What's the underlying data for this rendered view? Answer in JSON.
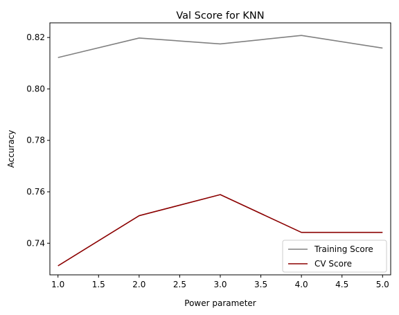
{
  "chart_data": {
    "type": "line",
    "title": "Val Score for KNN",
    "xlabel": "Power parameter",
    "ylabel": "Accuracy",
    "x": [
      1.0,
      2.0,
      3.0,
      4.0,
      5.0
    ],
    "xlim": [
      0.9,
      5.1
    ],
    "ylim": [
      0.7277,
      0.8257
    ],
    "xticks": [
      1.0,
      1.5,
      2.0,
      2.5,
      3.0,
      3.5,
      4.0,
      4.5,
      5.0
    ],
    "xtick_labels": [
      "1.0",
      "1.5",
      "2.0",
      "2.5",
      "3.0",
      "3.5",
      "4.0",
      "4.5",
      "5.0"
    ],
    "yticks": [
      0.74,
      0.76,
      0.78,
      0.8,
      0.82
    ],
    "ytick_labels": [
      "0.74",
      "0.76",
      "0.78",
      "0.80",
      "0.82"
    ],
    "grid": false,
    "legend_position": "lower-right",
    "series": [
      {
        "name": "Training Score",
        "color": "#808080",
        "values": [
          0.8122,
          0.8198,
          0.8175,
          0.8208,
          0.8159
        ]
      },
      {
        "name": "CV Score",
        "color": "#8b0000",
        "values": [
          0.7312,
          0.7507,
          0.7589,
          0.7442,
          0.7442
        ]
      }
    ]
  }
}
